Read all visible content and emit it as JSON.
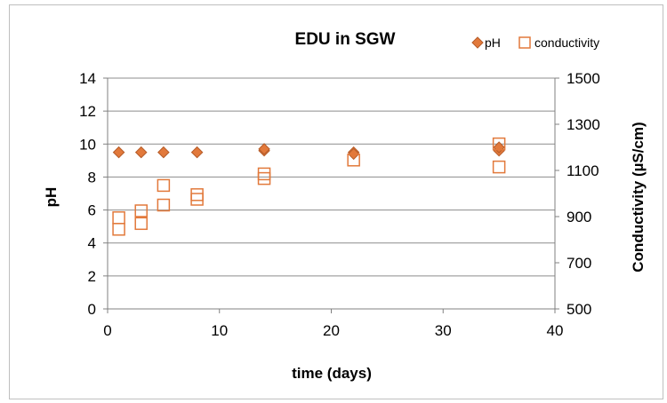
{
  "chart_data": {
    "type": "scatter",
    "title": "EDU in SGW",
    "xlabel": "time (days)",
    "ylabel": "pH",
    "y2label": "Conductivity (µS/cm)",
    "xlim": [
      0,
      40
    ],
    "ylim": [
      0,
      14
    ],
    "y2lim": [
      500,
      1500
    ],
    "xticks": [
      "0",
      "10",
      "20",
      "30",
      "40"
    ],
    "yticks": [
      "0",
      "2",
      "4",
      "6",
      "8",
      "10",
      "12",
      "14"
    ],
    "y2ticks": [
      "500",
      "700",
      "900",
      "1100",
      "1300",
      "1500"
    ],
    "grid": true,
    "legend_position": "top-right",
    "series": [
      {
        "name": "pH",
        "axis": "left",
        "marker": "diamond",
        "color": "#E2793B",
        "x": [
          1,
          1,
          3,
          3,
          5,
          5,
          8,
          8,
          14,
          14,
          22,
          22,
          35,
          35
        ],
        "y": [
          9.5,
          9.5,
          9.5,
          9.5,
          9.5,
          9.5,
          9.5,
          9.5,
          9.6,
          9.7,
          9.5,
          9.4,
          9.6,
          9.8
        ]
      },
      {
        "name": "conductivity",
        "axis": "right",
        "marker": "square-open",
        "color": "#E2793B",
        "x": [
          1,
          1,
          3,
          3,
          5,
          5,
          8,
          8,
          14,
          14,
          22,
          35,
          35
        ],
        "y": [
          845,
          895,
          870,
          925,
          950,
          1035,
          975,
          995,
          1065,
          1085,
          1145,
          1115,
          1215
        ]
      }
    ]
  }
}
